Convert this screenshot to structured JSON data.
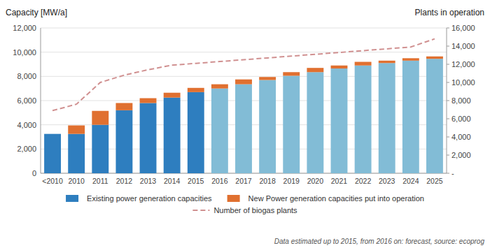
{
  "chart_data": {
    "type": "bar",
    "stacked": true,
    "ylabel": "Capacity [MW/a]",
    "y2label": "Plants in operation",
    "annotations": [
      "Data estimated up to 2015, from 2016 on: forecast, source: ecoprog"
    ],
    "categories": [
      "<2010",
      "2010",
      "2011",
      "2012",
      "2013",
      "2014",
      "2015",
      "2016",
      "2017",
      "2018",
      "2019",
      "2020",
      "2021",
      "2022",
      "2023",
      "2024",
      "2025"
    ],
    "series": [
      {
        "name": "Existing power generation capacities",
        "colors": [
          "#2e7ebf",
          "#2e7ebf",
          "#2e7ebf",
          "#2e7ebf",
          "#2e7ebf",
          "#2e7ebf",
          "#2e7ebf",
          "#82bcd6",
          "#82bcd6",
          "#82bcd6",
          "#82bcd6",
          "#82bcd6",
          "#82bcd6",
          "#82bcd6",
          "#82bcd6",
          "#82bcd6",
          "#82bcd6"
        ],
        "values": [
          3250,
          3250,
          4000,
          5200,
          5800,
          6250,
          6700,
          7000,
          7350,
          7700,
          8050,
          8350,
          8650,
          8900,
          9100,
          9300,
          9450
        ]
      },
      {
        "name": "New Power generation capacities put into operation",
        "color": "#e07030",
        "values": [
          0,
          700,
          1150,
          600,
          400,
          400,
          350,
          350,
          400,
          250,
          300,
          350,
          250,
          300,
          200,
          200,
          200
        ]
      },
      {
        "name": "Number of biogas plants",
        "type": "line",
        "axis": "y2",
        "color": "#d09090",
        "line_style": "dashed",
        "values": [
          6900,
          7600,
          10000,
          10800,
          11400,
          11900,
          12100,
          12300,
          12500,
          12700,
          12900,
          13100,
          13300,
          13500,
          13700,
          13900,
          14800
        ]
      }
    ],
    "ylim": [
      0,
      12000
    ],
    "yticks": [
      0,
      {
        "value": 2000,
        "label": "2,000"
      },
      {
        "value": 4000,
        "label": "4,000"
      },
      {
        "value": 6000,
        "label": "6,000"
      },
      {
        "value": 8000,
        "label": "8,000"
      },
      {
        "value": 10000,
        "label": "10,000"
      },
      {
        "value": 12000,
        "label": "12,000"
      }
    ],
    "y2lim": [
      0,
      16000
    ],
    "y2ticks": [
      {
        "value": 0,
        "label": "-"
      },
      {
        "value": 2000,
        "label": "2,000"
      },
      {
        "value": 4000,
        "label": "4,000"
      },
      {
        "value": 6000,
        "label": "6,000"
      },
      {
        "value": 8000,
        "label": "8,000"
      },
      {
        "value": 10000,
        "label": "10,000"
      },
      {
        "value": 12000,
        "label": "12,000"
      },
      {
        "value": 14000,
        "label": "14,000"
      },
      {
        "value": 16000,
        "label": "16,000"
      }
    ],
    "grid": true,
    "legend": "bottom"
  }
}
